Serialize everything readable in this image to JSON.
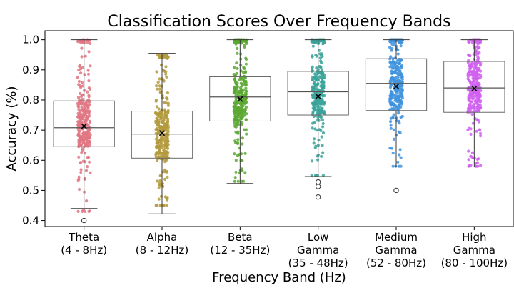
{
  "chart_data": {
    "type": "box",
    "title": "Classification Scores Over Frequency Bands",
    "xlabel": "Frequency Band (Hz)",
    "ylabel": "Accuracy (%)",
    "ylim": [
      0.38,
      1.03
    ],
    "yticks": [
      "0.4",
      "0.5",
      "0.6",
      "0.7",
      "0.8",
      "0.9",
      "1.0"
    ],
    "grid": false,
    "categories": [
      {
        "lines": [
          "Theta",
          "(4 - 8Hz)"
        ]
      },
      {
        "lines": [
          "Alpha",
          "(8 - 12Hz)"
        ]
      },
      {
        "lines": [
          "Beta",
          "(12 - 35Hz)"
        ]
      },
      {
        "lines": [
          "Low",
          "Gamma",
          "(35 - 48Hz)"
        ]
      },
      {
        "lines": [
          "Medium",
          "Gamma",
          "(52 - 80Hz)"
        ]
      },
      {
        "lines": [
          "High",
          "Gamma",
          "(80 - 100Hz)"
        ]
      }
    ],
    "boxes": [
      {
        "whisker_low": 0.44,
        "q1": 0.645,
        "median": 0.708,
        "q3": 0.797,
        "whisker_high": 1.0,
        "mean": 0.713,
        "outliers": [
          0.4
        ],
        "color": "#e07582",
        "points_range": [
          0.43,
          1.0
        ]
      },
      {
        "whisker_low": 0.422,
        "q1": 0.607,
        "median": 0.687,
        "q3": 0.763,
        "whisker_high": 0.955,
        "mean": 0.69,
        "outliers": [],
        "color": "#b39a3c",
        "points_range": [
          0.45,
          0.95
        ]
      },
      {
        "whisker_low": 0.523,
        "q1": 0.73,
        "median": 0.81,
        "q3": 0.877,
        "whisker_high": 1.0,
        "mean": 0.803,
        "outliers": [],
        "color": "#5aa831",
        "points_range": [
          0.53,
          1.0
        ]
      },
      {
        "whisker_low": 0.546,
        "q1": 0.75,
        "median": 0.827,
        "q3": 0.895,
        "whisker_high": 1.0,
        "mean": 0.812,
        "outliers": [
          0.528,
          0.513,
          0.478
        ],
        "color": "#3aa39a",
        "points_range": [
          0.55,
          1.0
        ]
      },
      {
        "whisker_low": 0.578,
        "q1": 0.765,
        "median": 0.855,
        "q3": 0.937,
        "whisker_high": 1.0,
        "mean": 0.845,
        "outliers": [
          0.5
        ],
        "color": "#3f93de",
        "points_range": [
          0.58,
          1.0
        ]
      },
      {
        "whisker_low": 0.578,
        "q1": 0.759,
        "median": 0.84,
        "q3": 0.928,
        "whisker_high": 1.0,
        "mean": 0.838,
        "outliers": [],
        "color": "#d060f0",
        "points_range": [
          0.58,
          1.0
        ]
      }
    ],
    "jitter_points_per_group": 300,
    "mean_marker": "x"
  }
}
